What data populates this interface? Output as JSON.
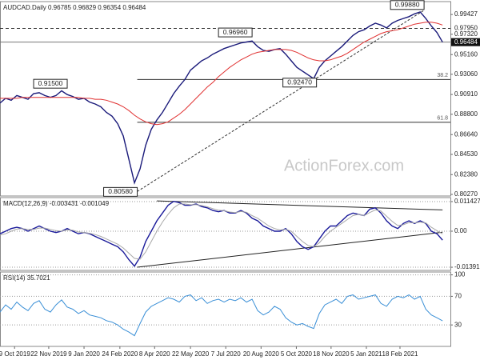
{
  "chart_data": [
    {
      "type": "line",
      "title": "AUDCAD.Daily 0.96785 0.96829 0.96354 0.96484",
      "watermark": "ActionForex.com",
      "series": [
        {
          "color": "#1a1a7a",
          "values": [
            0.9,
            0.905,
            0.903,
            0.908,
            0.906,
            0.904,
            0.91,
            0.911,
            0.908,
            0.906,
            0.908,
            0.913,
            0.909,
            0.907,
            0.904,
            0.905,
            0.901,
            0.899,
            0.896,
            0.89,
            0.886,
            0.878,
            0.865,
            0.84,
            0.815,
            0.83,
            0.855,
            0.872,
            0.882,
            0.89,
            0.9,
            0.91,
            0.918,
            0.925,
            0.935,
            0.94,
            0.945,
            0.948,
            0.952,
            0.955,
            0.958,
            0.96,
            0.962,
            0.964,
            0.965,
            0.966,
            0.96,
            0.956,
            0.955,
            0.957,
            0.958,
            0.952,
            0.945,
            0.938,
            0.934,
            0.93,
            0.926,
            0.938,
            0.945,
            0.95,
            0.955,
            0.96,
            0.966,
            0.972,
            0.976,
            0.978,
            0.982,
            0.985,
            0.983,
            0.98,
            0.985,
            0.988,
            0.99,
            0.992,
            0.995,
            0.997,
            0.99,
            0.982,
            0.975,
            0.9648
          ]
        },
        {
          "color": "#e03030",
          "values": [
            0.905,
            0.905,
            0.905,
            0.905,
            0.906,
            0.906,
            0.906,
            0.906,
            0.906,
            0.906,
            0.906,
            0.906,
            0.906,
            0.906,
            0.906,
            0.905,
            0.905,
            0.904,
            0.904,
            0.903,
            0.901,
            0.899,
            0.896,
            0.892,
            0.887,
            0.883,
            0.88,
            0.878,
            0.877,
            0.878,
            0.88,
            0.884,
            0.888,
            0.893,
            0.899,
            0.905,
            0.911,
            0.917,
            0.922,
            0.928,
            0.933,
            0.938,
            0.942,
            0.946,
            0.949,
            0.952,
            0.954,
            0.955,
            0.956,
            0.957,
            0.957,
            0.957,
            0.956,
            0.954,
            0.951,
            0.948,
            0.946,
            0.945,
            0.945,
            0.946,
            0.948,
            0.95,
            0.953,
            0.957,
            0.961,
            0.965,
            0.968,
            0.971,
            0.974,
            0.976,
            0.977,
            0.978,
            0.98,
            0.982,
            0.984,
            0.985,
            0.986,
            0.986,
            0.985,
            0.983
          ]
        }
      ],
      "ylim": [
        0.801,
        1.008
      ],
      "yticks": [
        0.99427,
        {
          "value": 0.9732,
          "label": "0.97320"
        },
        {
          "value": 0.9516,
          "label": "0.95160"
        },
        {
          "value": 0.9306,
          "label": "0.93060"
        },
        {
          "value": 0.9091,
          "label": "0.90910"
        },
        {
          "value": 0.888,
          "label": "0.88800"
        },
        {
          "value": 0.8664,
          "label": "0.86640"
        },
        {
          "value": 0.8453,
          "label": "0.84530"
        },
        {
          "value": 0.8238,
          "label": "0.82380"
        },
        {
          "value": 0.8027,
          "label": "0.80270"
        }
      ],
      "grid": false,
      "levels": [
        {
          "value": 0.9795,
          "label": "0.97950",
          "style": "dashed"
        },
        {
          "value": 0.96484,
          "style": "solid",
          "highlight": true
        }
      ],
      "annotations": [
        {
          "label": "0.99880",
          "x": 75.7,
          "value": 0.9988
        },
        {
          "label": "0.96960",
          "x": 45,
          "value": 0.9696
        },
        {
          "label": "0.91500",
          "x": 12,
          "value": 0.915
        },
        {
          "label": "0.92470",
          "x": 56.5,
          "value": 0.9247
        },
        {
          "label": "0.80580",
          "x": 24.5,
          "value": 0.8058
        }
      ],
      "fibs": [
        {
          "label": "38.2",
          "value": 0.9251,
          "from": 24.5
        },
        {
          "label": "61.8",
          "value": 0.8795,
          "from": 24.5
        }
      ]
    },
    {
      "type": "line",
      "title": "MACD(12,26,9) -0.003431 -0.001049",
      "series": [
        {
          "color": "#1a1a9a",
          "values": [
            -0.001,
            0.0,
            0.001,
            0.0015,
            0.001,
            0.0,
            0.001,
            0.002,
            0.001,
            0.0,
            -0.0005,
            0.0,
            0.001,
            0.0,
            -0.001,
            -0.0005,
            -0.001,
            -0.002,
            -0.003,
            -0.004,
            -0.005,
            -0.006,
            -0.008,
            -0.011,
            -0.0135,
            -0.01,
            -0.004,
            0.0,
            0.004,
            0.007,
            0.01,
            0.0115,
            0.011,
            0.01,
            0.01,
            0.0105,
            0.0095,
            0.009,
            0.008,
            0.0075,
            0.008,
            0.007,
            0.007,
            0.008,
            0.007,
            0.005,
            0.004,
            0.002,
            0.001,
            0.0,
            0.0,
            0.001,
            -0.001,
            -0.004,
            -0.006,
            -0.007,
            -0.006,
            -0.003,
            0.0,
            0.002,
            0.002,
            0.004,
            0.006,
            0.007,
            0.0065,
            0.006,
            0.0085,
            0.009,
            0.007,
            0.004,
            0.002,
            0.001,
            0.003,
            0.004,
            0.003,
            0.004,
            0.003,
            0.0,
            -0.001,
            -0.003431
          ]
        },
        {
          "color": "#a8a8a8",
          "values": [
            -0.0015,
            -0.001,
            0.0,
            0.0008,
            0.001,
            0.0007,
            0.0007,
            0.0012,
            0.0012,
            0.0007,
            0.0002,
            0.0,
            0.0005,
            0.0004,
            -0.0003,
            -0.0005,
            -0.0008,
            -0.0013,
            -0.002,
            -0.003,
            -0.004,
            -0.005,
            -0.0065,
            -0.0085,
            -0.0105,
            -0.0108,
            -0.008,
            -0.004,
            0.0,
            0.0035,
            0.0065,
            0.009,
            0.0105,
            0.0105,
            0.0102,
            0.0102,
            0.0099,
            0.0094,
            0.0087,
            0.0081,
            0.0079,
            0.0074,
            0.0072,
            0.0076,
            0.0073,
            0.006,
            0.005,
            0.0035,
            0.002,
            0.001,
            0.0005,
            0.0007,
            0.0,
            -0.002,
            -0.004,
            -0.0055,
            -0.006,
            -0.0045,
            -0.002,
            0.0,
            0.0015,
            0.003,
            0.0045,
            0.006,
            0.0065,
            0.006,
            0.0072,
            0.0082,
            0.0078,
            0.0058,
            0.0038,
            0.0022,
            0.0025,
            0.0033,
            0.0032,
            0.0035,
            0.0032,
            0.0015,
            0.0002,
            -0.001049
          ]
        }
      ],
      "ylim": [
        -0.01513,
        0.01296
      ],
      "yticks": [
        0.011427,
        {
          "value": 0,
          "label": "0.00"
        },
        -0.01391
      ],
      "grid": true,
      "trendlines": [
        {
          "x": [
            28,
            79
          ],
          "values": [
            0.0117,
            0.0082
          ]
        },
        {
          "x": [
            24.5,
            79
          ],
          "values": [
            -0.0139,
            -0.0004
          ]
        }
      ]
    },
    {
      "type": "line",
      "title": "RSI(14) 35.7021",
      "series": [
        {
          "color": "#3a8fd6",
          "values": [
            48,
            58,
            52,
            62,
            55,
            50,
            60,
            64,
            52,
            48,
            58,
            65,
            55,
            52,
            46,
            50,
            44,
            42,
            40,
            36,
            34,
            30,
            24,
            20,
            15,
            32,
            48,
            56,
            60,
            64,
            68,
            66,
            62,
            70,
            72,
            64,
            68,
            60,
            64,
            66,
            62,
            66,
            64,
            68,
            62,
            66,
            50,
            44,
            48,
            56,
            52,
            40,
            34,
            30,
            32,
            28,
            25,
            46,
            58,
            62,
            66,
            60,
            70,
            72,
            66,
            68,
            70,
            72,
            60,
            56,
            66,
            70,
            68,
            72,
            66,
            70,
            52,
            44,
            40,
            35.7021
          ]
        }
      ],
      "ylim": [
        0,
        104
      ],
      "yticks": [
        100,
        70,
        30
      ],
      "grid": true,
      "xlim": [
        0,
        80.4
      ],
      "xticks": [
        {
          "value": 2.6,
          "label": "9 Oct 2019"
        },
        {
          "value": 8.7,
          "label": "22 Nov 2019"
        },
        {
          "value": 15,
          "label": "9 Jan 2020"
        },
        {
          "value": 21.4,
          "label": "24 Feb 2020"
        },
        {
          "value": 27.6,
          "label": "8 Apr 2020"
        },
        {
          "value": 34,
          "label": "22 May 2020"
        },
        {
          "value": 40.3,
          "label": "7 Jul 2020"
        },
        {
          "value": 46.6,
          "label": "20 Aug 2020"
        },
        {
          "value": 52.9,
          "label": "5 Oct 2020"
        },
        {
          "value": 59.1,
          "label": "18 Nov 2020"
        },
        {
          "value": 65.4,
          "label": "5 Jan 2021"
        },
        {
          "value": 71.4,
          "label": "18 Feb 2021"
        }
      ]
    }
  ]
}
